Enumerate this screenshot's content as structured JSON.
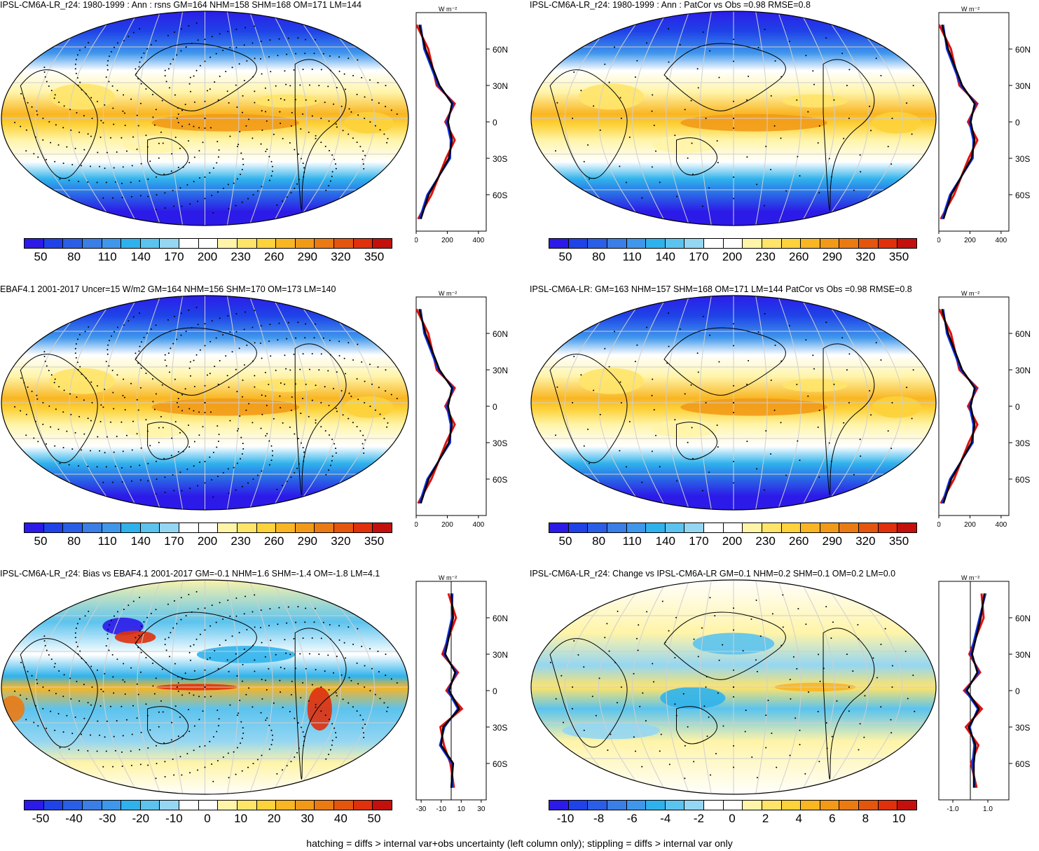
{
  "colors": {
    "scale": [
      "#2c1ae8",
      "#1f43e8",
      "#2a5ee6",
      "#3a7ee6",
      "#3f97ec",
      "#2fb2ec",
      "#5cc3ee",
      "#95d6f2",
      "#ffffff",
      "#ffffff",
      "#fff4a8",
      "#ffe46a",
      "#fdd23a",
      "#f9b522",
      "#f29a18",
      "#ec7a12",
      "#e4560e",
      "#e0300c",
      "#c4100c"
    ],
    "model_line": "#000000",
    "obs_line": "#e01010",
    "alt_line": "#1030e0"
  },
  "footer": "hatching = diffs > internal var+obs uncertainty (left column only); stippling = diffs > internal var only",
  "panels": [
    {
      "title": "IPSL-CM6A-LR_r24: 1980-1999 : Ann : rsns GM=164 NHM=158 SHM=168 OM=171 LM=144",
      "cbar_labels": [
        "50",
        "80",
        "110",
        "140",
        "170",
        "200",
        "230",
        "260",
        "290",
        "320",
        "350"
      ],
      "zonal_unit": "W m⁻²",
      "zonal_xticks": [
        "0",
        "200",
        "400"
      ],
      "lat_labels": [
        "60N",
        "30N",
        "0",
        "30S",
        "60S"
      ]
    },
    {
      "title": "IPSL-CM6A-LR_r24: 1980-1999 : Ann : PatCor vs Obs =0.98 RMSE=0.8",
      "cbar_labels": [
        "50",
        "80",
        "110",
        "140",
        "170",
        "200",
        "230",
        "260",
        "290",
        "320",
        "350"
      ],
      "zonal_unit": "W m⁻²",
      "zonal_xticks": [
        "0",
        "200",
        "400"
      ],
      "lat_labels": [
        "60N",
        "30N",
        "0",
        "30S",
        "60S"
      ]
    },
    {
      "title": "EBAF4.1 2001-2017 Uncer=15 W/m2 GM=164 NHM=156 SHM=170 OM=173 LM=140",
      "cbar_labels": [
        "50",
        "80",
        "110",
        "140",
        "170",
        "200",
        "230",
        "260",
        "290",
        "320",
        "350"
      ],
      "zonal_unit": "W m⁻²",
      "zonal_xticks": [
        "0",
        "200",
        "400"
      ],
      "lat_labels": [
        "60N",
        "30N",
        "0",
        "30S",
        "60S"
      ]
    },
    {
      "title": "IPSL-CM6A-LR: GM=163 NHM=157 SHM=168 OM=171 LM=144 PatCor vs Obs =0.98 RMSE=0.8",
      "cbar_labels": [
        "50",
        "80",
        "110",
        "140",
        "170",
        "200",
        "230",
        "260",
        "290",
        "320",
        "350"
      ],
      "zonal_unit": "W m⁻²",
      "zonal_xticks": [
        "0",
        "200",
        "400"
      ],
      "lat_labels": [
        "60N",
        "30N",
        "0",
        "30S",
        "60S"
      ]
    },
    {
      "title": "IPSL-CM6A-LR_r24: Bias vs EBAF4.1 2001-2017 GM=-0.1 NHM=1.6 SHM=-1.4 OM=-1.8 LM=4.1",
      "cbar_labels": [
        "-50",
        "-40",
        "-30",
        "-20",
        "-10",
        "0",
        "10",
        "20",
        "30",
        "40",
        "50"
      ],
      "zonal_unit": "W m⁻²",
      "zonal_xticks": [
        "-30",
        "-10",
        "10",
        "30"
      ],
      "lat_labels": [
        "60N",
        "30N",
        "0",
        "30S",
        "60S"
      ]
    },
    {
      "title": "IPSL-CM6A-LR_r24: Change vs IPSL-CM6A-LR GM=0.1 NHM=0.2 SHM=0.1 OM=0.2 LM=0.0",
      "cbar_labels": [
        "-10",
        "-8",
        "-6",
        "-4",
        "-2",
        "0",
        "2",
        "4",
        "6",
        "8",
        "10"
      ],
      "zonal_unit": "W m⁻²",
      "zonal_xticks": [
        "-1.0",
        "1.0"
      ],
      "lat_labels": [
        "60N",
        "30N",
        "0",
        "30S",
        "60S"
      ]
    }
  ],
  "chart_data": [
    {
      "type": "line",
      "title": "IPSL-CM6A-LR_r24: 1980-1999 : Ann : rsns GM=164 NHM=158 SHM=168 OM=171 LM=144",
      "ylabel": "W m⁻²",
      "y": [
        80,
        60,
        30,
        15,
        0,
        -15,
        -30,
        -60,
        -80
      ],
      "xlim": [
        0,
        450
      ],
      "series": [
        {
          "values": [
            20,
            60,
            150,
            230,
            205,
            230,
            210,
            80,
            30
          ]
        }
      ]
    },
    {
      "type": "line",
      "title": "IPSL-CM6A-LR_r24: 1980-1999 : Ann : PatCor vs Obs =0.98 RMSE=0.8",
      "ylabel": "W m⁻²",
      "y": [
        80,
        60,
        30,
        15,
        0,
        -15,
        -30,
        -60,
        -80
      ],
      "xlim": [
        0,
        450
      ],
      "series": [
        {
          "values": [
            20,
            60,
            150,
            230,
            205,
            230,
            210,
            80,
            30
          ]
        }
      ]
    },
    {
      "type": "line",
      "title": "EBAF4.1 2001-2017 Uncer=15 W/m2 GM=164 NHM=156 SHM=170 OM=173 LM=140",
      "ylabel": "W m⁻²",
      "y": [
        80,
        60,
        30,
        15,
        0,
        -15,
        -30,
        -60,
        -80
      ],
      "xlim": [
        0,
        450
      ],
      "series": [
        {
          "values": [
            20,
            60,
            150,
            230,
            205,
            230,
            210,
            80,
            30
          ]
        }
      ]
    },
    {
      "type": "line",
      "title": "IPSL-CM6A-LR: GM=163 NHM=157 SHM=168 OM=171 LM=144 PatCor vs Obs =0.98 RMSE=0.8",
      "ylabel": "W m⁻²",
      "y": [
        80,
        60,
        30,
        15,
        0,
        -15,
        -30,
        -60,
        -80
      ],
      "xlim": [
        0,
        450
      ],
      "series": [
        {
          "values": [
            20,
            60,
            150,
            230,
            205,
            230,
            210,
            80,
            30
          ]
        }
      ]
    },
    {
      "type": "line",
      "title": "IPSL-CM6A-LR_r24: Bias vs EBAF4.1 2001-2017 GM=-0.1 NHM=1.6 SHM=-1.4 OM=-1.8 LM=4.1",
      "ylabel": "W m⁻²",
      "y": [
        80,
        60,
        30,
        15,
        0,
        -15,
        -30,
        -45,
        -60,
        -80
      ],
      "xlim": [
        -35,
        35
      ],
      "series": [
        {
          "values": [
            0,
            2,
            -6,
            4,
            -2,
            8,
            -8,
            -10,
            2,
            0
          ]
        }
      ]
    },
    {
      "type": "line",
      "title": "IPSL-CM6A-LR_r24: Change vs IPSL-CM6A-LR GM=0.1 NHM=0.2 SHM=0.1 OM=0.2 LM=0.0",
      "ylabel": "W m⁻²",
      "y": [
        80,
        60,
        30,
        15,
        0,
        -15,
        -30,
        -45,
        -60,
        -80
      ],
      "xlim": [
        -1.8,
        2.2
      ],
      "series": [
        {
          "values": [
            0.8,
            0.6,
            0.1,
            0.4,
            -0.2,
            0.5,
            -0.1,
            0.3,
            0.2,
            0.2
          ]
        }
      ]
    }
  ]
}
